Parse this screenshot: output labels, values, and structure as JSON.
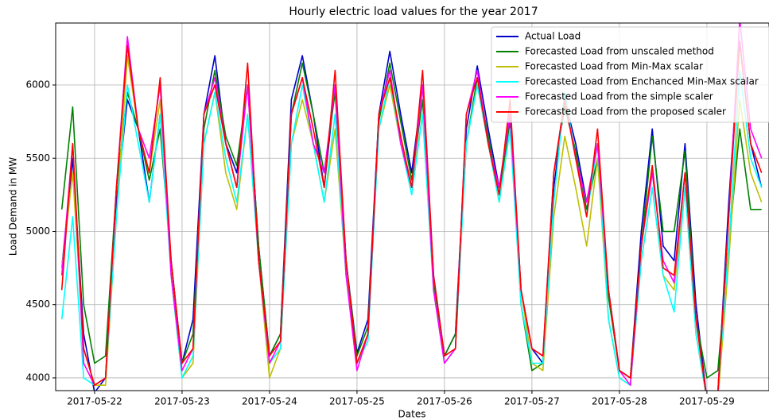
{
  "chart_data": {
    "type": "line",
    "title": "Hourly electric load values for the year 2017",
    "x_label": "Dates",
    "y_label": "Load Demand in MW",
    "x": [
      -0.375,
      -0.25,
      -0.125,
      0,
      0.125,
      0.25,
      0.375,
      0.5,
      0.625,
      0.75,
      0.875,
      1,
      1.125,
      1.25,
      1.375,
      1.5,
      1.625,
      1.75,
      1.875,
      2,
      2.125,
      2.25,
      2.375,
      2.5,
      2.625,
      2.75,
      2.875,
      3,
      3.125,
      3.25,
      3.375,
      3.5,
      3.625,
      3.75,
      3.875,
      4,
      4.125,
      4.25,
      4.375,
      4.5,
      4.625,
      4.75,
      4.875,
      5,
      5.125,
      5.25,
      5.375,
      5.5,
      5.625,
      5.75,
      5.875,
      6,
      6.125,
      6.25,
      6.375,
      6.5,
      6.625,
      6.75,
      6.875,
      7,
      7.125,
      7.25,
      7.375,
      7.5,
      7.625
    ],
    "series": [
      {
        "name": "Actual Load",
        "color": "#0000cc",
        "values": [
          4750,
          5500,
          4300,
          3900,
          4000,
          5200,
          5900,
          5700,
          5200,
          5800,
          4800,
          4100,
          4400,
          5800,
          6200,
          5600,
          5400,
          6000,
          4900,
          4150,
          4300,
          5900,
          6200,
          5800,
          5300,
          6000,
          4800,
          4170,
          4400,
          5800,
          6230,
          5800,
          5400,
          6000,
          4700,
          4150,
          4300,
          5700,
          6130,
          5700,
          5300,
          5800,
          4600,
          4200,
          4100,
          5300,
          5900,
          5600,
          5200,
          5600,
          4600,
          4050,
          4000,
          5000,
          5700,
          4900,
          4800,
          5600,
          4500,
          3850,
          3900,
          5200,
          6300,
          5600,
          5300
        ]
      },
      {
        "name": "Forecasted Load from unscaled method",
        "color": "#008000",
        "values": [
          5150,
          5850,
          4500,
          4100,
          4150,
          5300,
          5950,
          5700,
          5350,
          5700,
          4800,
          4100,
          4300,
          5700,
          6100,
          5650,
          5450,
          6000,
          4900,
          4150,
          4300,
          5800,
          6150,
          5800,
          5400,
          5950,
          4800,
          4150,
          4350,
          5750,
          6150,
          5750,
          5350,
          5900,
          4650,
          4150,
          4300,
          5600,
          6050,
          5650,
          5250,
          5750,
          4500,
          4050,
          4100,
          5400,
          5850,
          5550,
          5150,
          5500,
          4550,
          4050,
          4000,
          4900,
          5650,
          5000,
          5000,
          5550,
          4400,
          4000,
          4050,
          4900,
          5700,
          5150,
          5150
        ]
      },
      {
        "name": "Forecasted Load from Min-Max scalar",
        "color": "#bfbf00",
        "values": [
          4750,
          5400,
          4200,
          3950,
          3950,
          5100,
          6200,
          5700,
          5400,
          5900,
          4700,
          4000,
          4100,
          5600,
          5950,
          5400,
          5150,
          5800,
          4800,
          4000,
          4200,
          5600,
          5900,
          5600,
          5200,
          5700,
          4700,
          4100,
          4300,
          5700,
          6000,
          5600,
          5300,
          5800,
          4600,
          4100,
          4200,
          5600,
          6000,
          5600,
          5200,
          5700,
          4600,
          4100,
          4050,
          5100,
          5650,
          5300,
          4900,
          5500,
          4400,
          4000,
          3950,
          4800,
          5300,
          4700,
          4600,
          5300,
          4300,
          3850,
          3850,
          4800,
          5900,
          5400,
          5200
        ]
      },
      {
        "name": "Forecasted Load from Enchanced Min-Max scalar",
        "color": "#00ffff",
        "values": [
          4400,
          5100,
          4000,
          3950,
          4000,
          5100,
          6000,
          5600,
          5200,
          5800,
          4700,
          4000,
          4150,
          5600,
          5950,
          5500,
          5200,
          5800,
          4800,
          4100,
          4200,
          5600,
          6000,
          5600,
          5200,
          5800,
          4700,
          4100,
          4250,
          5700,
          6050,
          5600,
          5250,
          5800,
          4600,
          4100,
          4200,
          5600,
          6000,
          5600,
          5200,
          5700,
          4500,
          4100,
          4100,
          5200,
          5950,
          5500,
          5100,
          5600,
          4400,
          4000,
          3950,
          4800,
          5300,
          4700,
          4450,
          5300,
          4300,
          3850,
          3900,
          4900,
          6100,
          5500,
          5300
        ]
      },
      {
        "name": "Forecasted Load from the simple scaler",
        "color": "#ff00ff",
        "values": [
          4700,
          5600,
          4100,
          3950,
          4000,
          5300,
          6330,
          5700,
          5500,
          6000,
          4700,
          4050,
          4200,
          5800,
          6050,
          5600,
          5300,
          6000,
          4800,
          4100,
          4250,
          5800,
          6050,
          5600,
          5400,
          6000,
          4700,
          4050,
          4300,
          5800,
          6100,
          5600,
          5300,
          6000,
          4600,
          4100,
          4200,
          5800,
          6100,
          5600,
          5300,
          5800,
          4600,
          4200,
          4150,
          5400,
          5900,
          5500,
          5200,
          5600,
          4600,
          4050,
          3950,
          4900,
          5400,
          4800,
          4650,
          5400,
          4400,
          3850,
          3900,
          5100,
          6450,
          5700,
          5500
        ]
      },
      {
        "name": "Forecasted Load from the proposed scaler",
        "color": "#ff0000",
        "values": [
          4600,
          5600,
          4200,
          3950,
          4000,
          5300,
          6270,
          5700,
          5400,
          6050,
          4800,
          4100,
          4200,
          5800,
          6000,
          5600,
          5300,
          6150,
          4800,
          4150,
          4250,
          5800,
          6050,
          5700,
          5300,
          6100,
          4800,
          4100,
          4300,
          5800,
          6050,
          5650,
          5300,
          6100,
          4700,
          4150,
          4200,
          5800,
          6050,
          5600,
          5250,
          5900,
          4600,
          4200,
          4150,
          5400,
          5900,
          5500,
          5100,
          5700,
          4600,
          4050,
          4000,
          4900,
          5450,
          4750,
          4700,
          5400,
          4400,
          3850,
          3900,
          5100,
          6300,
          5600,
          5400
        ]
      }
    ],
    "xlim": [
      -0.445,
      7.71
    ],
    "xticks": [
      {
        "value": 0,
        "label": "2017-05-22"
      },
      {
        "value": 1,
        "label": "2017-05-23"
      },
      {
        "value": 2,
        "label": "2017-05-24"
      },
      {
        "value": 3,
        "label": "2017-05-25"
      },
      {
        "value": 4,
        "label": "2017-05-26"
      },
      {
        "value": 5,
        "label": "2017-05-27"
      },
      {
        "value": 6,
        "label": "2017-05-28"
      },
      {
        "value": 7,
        "label": "2017-05-29"
      }
    ],
    "ylim": [
      3913,
      6423
    ],
    "yticks": [
      4000,
      4500,
      5000,
      5500,
      6000
    ],
    "grid": true,
    "legend": "upper-right"
  }
}
